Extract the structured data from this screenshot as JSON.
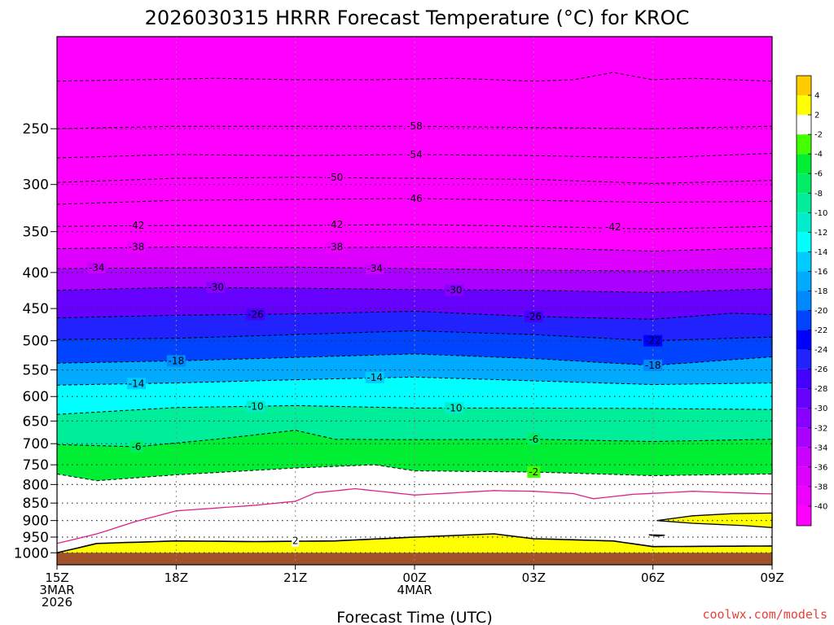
{
  "chart_data": {
    "type": "heatmap",
    "title": "2026030315 HRRR Forecast Temperature (°C) for KROC",
    "xlabel": "Forecast Time (UTC)",
    "ylabel": "",
    "y_scale": "log-pressure",
    "ylim": [
      1040,
      185
    ],
    "xlim": [
      0,
      18
    ],
    "grid": true,
    "legend": "right",
    "x_ticks": [
      {
        "hour": 0,
        "lines": [
          "15Z",
          "3MAR",
          "2026"
        ]
      },
      {
        "hour": 3,
        "lines": [
          "18Z"
        ]
      },
      {
        "hour": 6,
        "lines": [
          "21Z"
        ]
      },
      {
        "hour": 9,
        "lines": [
          "00Z",
          "4MAR"
        ]
      },
      {
        "hour": 12,
        "lines": [
          "03Z"
        ]
      },
      {
        "hour": 15,
        "lines": [
          "06Z"
        ]
      },
      {
        "hour": 18,
        "lines": [
          "09Z"
        ]
      }
    ],
    "y_ticks": [
      {
        "p": 250,
        "label": "250"
      },
      {
        "p": 300,
        "label": "300"
      },
      {
        "p": 350,
        "label": "350"
      },
      {
        "p": 400,
        "label": "400"
      },
      {
        "p": 450,
        "label": "450"
      },
      {
        "p": 500,
        "label": "500"
      },
      {
        "p": 550,
        "label": "550"
      },
      {
        "p": 600,
        "label": "600"
      },
      {
        "p": 650,
        "label": "650"
      },
      {
        "p": 700,
        "label": "700"
      },
      {
        "p": 750,
        "label": "750"
      },
      {
        "p": 800,
        "label": "800"
      },
      {
        "p": 850,
        "label": "850"
      },
      {
        "p": 900,
        "label": "900"
      },
      {
        "p": 950,
        "label": "950"
      },
      {
        "p": 1000,
        "label": "1000"
      }
    ],
    "dotted_levels": [
      250,
      300,
      350,
      400,
      450,
      500,
      550,
      600,
      650,
      700,
      750,
      800,
      850,
      900,
      950,
      1000
    ],
    "contours": [
      {
        "t": -62,
        "points": [
          [
            0,
            214
          ],
          [
            2,
            213
          ],
          [
            4,
            212
          ],
          [
            6,
            213
          ],
          [
            8,
            213
          ],
          [
            10,
            212
          ],
          [
            12,
            214
          ],
          [
            13,
            213
          ],
          [
            14,
            208
          ],
          [
            15,
            213
          ],
          [
            16,
            212
          ],
          [
            18,
            214
          ]
        ]
      },
      {
        "t": -58,
        "points": [
          [
            0,
            250
          ],
          [
            3,
            248
          ],
          [
            6,
            248
          ],
          [
            9,
            248
          ],
          [
            12,
            249
          ],
          [
            15,
            250
          ],
          [
            18,
            248
          ]
        ]
      },
      {
        "t": -54,
        "points": [
          [
            0,
            275
          ],
          [
            3,
            272
          ],
          [
            6,
            273
          ],
          [
            9,
            272
          ],
          [
            12,
            273
          ],
          [
            15,
            275
          ],
          [
            18,
            271
          ]
        ]
      },
      {
        "t": -50,
        "points": [
          [
            0,
            298
          ],
          [
            3,
            294
          ],
          [
            6,
            293
          ],
          [
            9,
            294
          ],
          [
            12,
            295
          ],
          [
            15,
            299
          ],
          [
            18,
            296
          ]
        ]
      },
      {
        "t": -46,
        "points": [
          [
            0,
            320
          ],
          [
            3,
            316
          ],
          [
            6,
            315
          ],
          [
            9,
            314
          ],
          [
            12,
            316
          ],
          [
            15,
            318
          ],
          [
            18,
            317
          ]
        ]
      },
      {
        "t": -42,
        "points": [
          [
            0,
            344
          ],
          [
            3,
            343
          ],
          [
            6,
            343
          ],
          [
            9,
            342
          ],
          [
            12,
            344
          ],
          [
            15,
            347
          ],
          [
            18,
            344
          ]
        ]
      },
      {
        "t": -38,
        "points": [
          [
            0,
            370
          ],
          [
            3,
            368
          ],
          [
            6,
            369
          ],
          [
            9,
            368
          ],
          [
            12,
            369
          ],
          [
            15,
            373
          ],
          [
            18,
            369
          ]
        ]
      },
      {
        "t": -34,
        "points": [
          [
            0,
            395
          ],
          [
            3,
            394
          ],
          [
            6,
            393
          ],
          [
            9,
            395
          ],
          [
            12,
            397
          ],
          [
            15,
            398
          ],
          [
            18,
            395
          ]
        ]
      },
      {
        "t": -30,
        "points": [
          [
            0,
            424
          ],
          [
            3,
            420
          ],
          [
            6,
            421
          ],
          [
            9,
            423
          ],
          [
            12,
            424
          ],
          [
            15,
            427
          ],
          [
            18,
            422
          ]
        ]
      },
      {
        "t": -26,
        "points": [
          [
            0,
            464
          ],
          [
            3,
            460
          ],
          [
            6,
            458
          ],
          [
            9,
            454
          ],
          [
            12,
            462
          ],
          [
            15,
            466
          ],
          [
            17,
            457
          ],
          [
            18,
            459
          ]
        ]
      },
      {
        "t": -22,
        "points": [
          [
            0,
            498
          ],
          [
            3,
            496
          ],
          [
            6,
            490
          ],
          [
            9,
            484
          ],
          [
            12,
            490
          ],
          [
            15,
            500
          ],
          [
            18,
            494
          ]
        ]
      },
      {
        "t": -18,
        "points": [
          [
            0,
            538
          ],
          [
            3,
            534
          ],
          [
            6,
            528
          ],
          [
            9,
            522
          ],
          [
            12,
            530
          ],
          [
            15,
            542
          ],
          [
            18,
            527
          ]
        ]
      },
      {
        "t": -14,
        "points": [
          [
            0,
            578
          ],
          [
            3,
            574
          ],
          [
            6,
            568
          ],
          [
            9,
            563
          ],
          [
            12,
            570
          ],
          [
            15,
            577
          ],
          [
            18,
            574
          ]
        ]
      },
      {
        "t": -10,
        "points": [
          [
            0,
            636
          ],
          [
            3,
            622
          ],
          [
            6,
            618
          ],
          [
            9,
            623
          ],
          [
            12,
            623
          ],
          [
            15,
            624
          ],
          [
            18,
            626
          ]
        ]
      },
      {
        "t": -6,
        "points": [
          [
            0,
            702
          ],
          [
            2,
            707
          ],
          [
            4,
            690
          ],
          [
            6,
            670
          ],
          [
            7,
            690
          ],
          [
            9,
            691
          ],
          [
            12,
            690
          ],
          [
            15,
            695
          ],
          [
            18,
            690
          ]
        ]
      },
      {
        "t": -2,
        "points": [
          [
            0,
            773
          ],
          [
            1,
            790
          ],
          [
            3,
            775
          ],
          [
            6,
            758
          ],
          [
            8,
            750
          ],
          [
            9,
            765
          ],
          [
            12,
            768
          ],
          [
            15,
            777
          ],
          [
            18,
            773
          ]
        ]
      },
      {
        "t": 2,
        "points": [
          [
            0,
            1000
          ],
          [
            1,
            970
          ],
          [
            3,
            962
          ],
          [
            5,
            964
          ],
          [
            7,
            962
          ],
          [
            9,
            950
          ],
          [
            11,
            940
          ],
          [
            12,
            955
          ],
          [
            14,
            962
          ],
          [
            15,
            980
          ],
          [
            18,
            978
          ]
        ]
      }
    ],
    "pink_contour": [
      [
        0,
        970
      ],
      [
        1,
        940
      ],
      [
        2,
        902
      ],
      [
        3,
        872
      ],
      [
        5,
        856
      ],
      [
        6,
        845
      ],
      [
        6.5,
        822
      ],
      [
        7.5,
        811
      ],
      [
        9,
        828
      ],
      [
        11,
        816
      ],
      [
        12,
        818
      ],
      [
        13,
        824
      ],
      [
        13.5,
        838
      ],
      [
        14.5,
        826
      ],
      [
        16,
        818
      ],
      [
        18,
        825
      ]
    ],
    "warm_patches": [
      {
        "points": [
          [
            15.1,
            900
          ],
          [
            16,
            886
          ],
          [
            17,
            880
          ],
          [
            18,
            878
          ],
          [
            18,
            921
          ],
          [
            17.3,
            915
          ],
          [
            16,
            908
          ]
        ]
      },
      {
        "points": [
          [
            14.9,
            943
          ],
          [
            15.3,
            944
          ],
          [
            15.1,
            947
          ]
        ]
      }
    ],
    "label_positions": [
      {
        "t": -58,
        "at": [
          9,
          248
        ]
      },
      {
        "t": -54,
        "at": [
          9,
          272
        ]
      },
      {
        "t": -50,
        "at": [
          7,
          293
        ]
      },
      {
        "t": -46,
        "at": [
          9,
          314
        ]
      },
      {
        "t": -42,
        "at": [
          2,
          343
        ]
      },
      {
        "t": -42,
        "at": [
          7,
          342
        ]
      },
      {
        "t": -42,
        "at": [
          14,
          345
        ]
      },
      {
        "t": -38,
        "at": [
          2,
          368
        ]
      },
      {
        "t": -38,
        "at": [
          7,
          368
        ]
      },
      {
        "t": -34,
        "at": [
          1,
          394
        ]
      },
      {
        "t": -34,
        "at": [
          8,
          395
        ]
      },
      {
        "t": -30,
        "at": [
          4,
          420
        ]
      },
      {
        "t": -30,
        "at": [
          10,
          424
        ]
      },
      {
        "t": -26,
        "at": [
          5,
          459
        ]
      },
      {
        "t": -26,
        "at": [
          12,
          462
        ]
      },
      {
        "t": -22,
        "at": [
          15,
          500
        ]
      },
      {
        "t": -18,
        "at": [
          3,
          534
        ]
      },
      {
        "t": -18,
        "at": [
          15,
          542
        ]
      },
      {
        "t": -14,
        "at": [
          2,
          575
        ]
      },
      {
        "t": -14,
        "at": [
          8,
          564
        ]
      },
      {
        "t": -10,
        "at": [
          5,
          620
        ]
      },
      {
        "t": -10,
        "at": [
          10,
          623
        ]
      },
      {
        "t": -6,
        "at": [
          2,
          707
        ]
      },
      {
        "t": -6,
        "at": [
          12,
          690
        ]
      },
      {
        "t": -2,
        "at": [
          12,
          768
        ]
      },
      {
        "t": 2,
        "at": [
          6,
          962
        ]
      }
    ],
    "surface": {
      "p": 1000
    },
    "colorbar": {
      "bins": [
        {
          "color": "#ff00ff"
        },
        {
          "color": "#ee00ff"
        },
        {
          "color": "#dd00ff"
        },
        {
          "color": "#cc00ff"
        },
        {
          "color": "#aa00ff"
        },
        {
          "color": "#8800ff"
        },
        {
          "color": "#6600ff"
        },
        {
          "color": "#4400ff"
        },
        {
          "color": "#2222ff"
        },
        {
          "color": "#0000ff"
        },
        {
          "color": "#0044ff"
        },
        {
          "color": "#0088ff"
        },
        {
          "color": "#00aaff"
        },
        {
          "color": "#00ccff"
        },
        {
          "color": "#00ffff"
        },
        {
          "color": "#00eecc"
        },
        {
          "color": "#00ee99"
        },
        {
          "color": "#00ee66"
        },
        {
          "color": "#00ee33"
        },
        {
          "color": "#44ff00"
        },
        {
          "color": "#ffffff"
        },
        {
          "color": "#ffff00"
        },
        {
          "color": "#ffcc00"
        }
      ],
      "labels": [
        "-40",
        "-38",
        "-36",
        "-34",
        "-32",
        "-30",
        "-28",
        "-26",
        "-24",
        "-22",
        "-20",
        "-18",
        "-16",
        "-14",
        "-12",
        "-10",
        "-8",
        "-6",
        "-4",
        "-2",
        "2",
        "4"
      ]
    }
  },
  "colors": {
    "surface": "#a0522d",
    "pink_contour": "#e0208a",
    "credit": "#e8403a"
  },
  "credit": "coolwx.com/models"
}
